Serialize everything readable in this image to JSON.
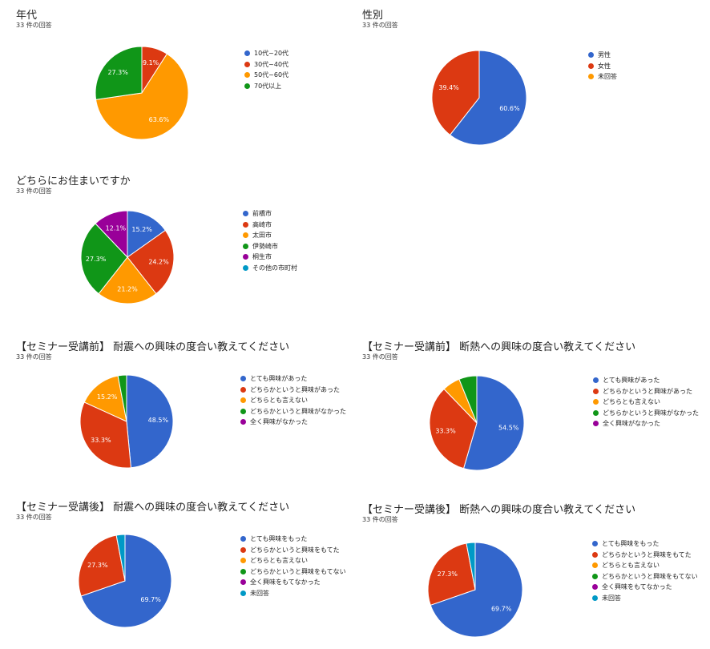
{
  "response_count_label": "33 件の回答",
  "palette": [
    "#3366cc",
    "#dc3912",
    "#ff9900",
    "#109618",
    "#990099",
    "#0099c6"
  ],
  "chart_data": [
    {
      "type": "pie",
      "title": "年代",
      "subtitle": "33 件の回答",
      "categories": [
        "10代~20代",
        "30代~40代",
        "50代~60代",
        "70代以上"
      ],
      "values": [
        0,
        9.1,
        63.6,
        27.3
      ],
      "labels": [
        "",
        "9.1%",
        "63.6%",
        "27.3%"
      ]
    },
    {
      "type": "pie",
      "title": "性別",
      "subtitle": "33 件の回答",
      "categories": [
        "男性",
        "女性",
        "未回答"
      ],
      "values": [
        60.6,
        39.4,
        0
      ],
      "labels": [
        "60.6%",
        "39.4%",
        ""
      ]
    },
    {
      "type": "pie",
      "title": "どちらにお住まいですか",
      "subtitle": "33 件の回答",
      "categories": [
        "前橋市",
        "高崎市",
        "太田市",
        "伊勢崎市",
        "桐生市",
        "その他の市町村"
      ],
      "values": [
        15.2,
        24.2,
        21.2,
        27.3,
        12.1,
        0
      ],
      "labels": [
        "15.2%",
        "24.2%",
        "21.2%",
        "27.3%",
        "12.1%",
        ""
      ]
    },
    {
      "type": "pie",
      "title": "【セミナー受講前】 耐震への興味の度合い教えてください",
      "subtitle": "33 件の回答",
      "categories": [
        "とても興味があった",
        "どちらかというと興味があった",
        "どちらとも言えない",
        "どちらかというと興味がなかった",
        "全く興味がなかった"
      ],
      "values": [
        48.5,
        33.3,
        15.2,
        3.0,
        0
      ],
      "labels": [
        "48.5%",
        "33.3%",
        "15.2%",
        "",
        ""
      ]
    },
    {
      "type": "pie",
      "title": "【セミナー受講前】 断熱への興味の度合い教えてください",
      "subtitle": "33 件の回答",
      "categories": [
        "とても興味があった",
        "どちらかというと興味があった",
        "どちらとも言えない",
        "どちらかというと興味がなかった",
        "全く興味がなかった"
      ],
      "values": [
        54.5,
        33.3,
        6.1,
        6.1,
        0
      ],
      "labels": [
        "54.5%",
        "33.3%",
        "",
        "",
        ""
      ]
    },
    {
      "type": "pie",
      "title": "【セミナー受講後】 耐震への興味の度合い教えてください",
      "subtitle": "33 件の回答",
      "categories": [
        "とても興味をもった",
        "どちらかというと興味をもてた",
        "どちらとも言えない",
        "どちらかというと興味をもてない",
        "全く興味をもてなかった",
        "未回答"
      ],
      "values": [
        69.7,
        27.3,
        0,
        0,
        0,
        3.0
      ],
      "labels": [
        "69.7%",
        "27.3%",
        "",
        "",
        "",
        ""
      ]
    },
    {
      "type": "pie",
      "title": "【セミナー受講後】 断熱への興味の度合い教えてください",
      "subtitle": "33 件の回答",
      "categories": [
        "とても興味をもった",
        "どちらかというと興味をもてた",
        "どちらとも言えない",
        "どちらかというと興味をもてない",
        "全く興味をもてなかった",
        "未回答"
      ],
      "values": [
        69.7,
        27.3,
        0,
        0,
        0,
        3.0
      ],
      "labels": [
        "69.7%",
        "27.3%",
        "",
        "",
        "",
        ""
      ]
    }
  ]
}
